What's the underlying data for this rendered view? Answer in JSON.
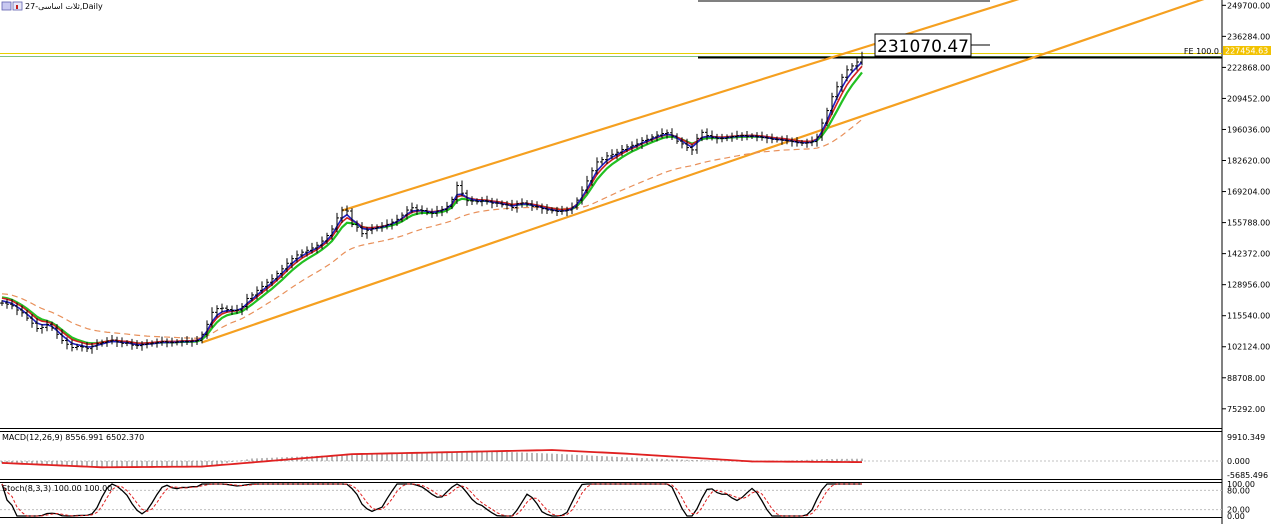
{
  "window": {
    "title": "ثلات اساسی-27,Daily",
    "icon": "chart-window-icon"
  },
  "chart_data": {
    "type": "line",
    "title": "ثلات اساسی-27,Daily",
    "price_axis_ticks": [
      "249700.00",
      "236284.00",
      "222868.00",
      "209452.00",
      "196036.00",
      "182620.00",
      "169204.00",
      "155788.00",
      "142372.00",
      "128956.00",
      "115540.00",
      "102124.00",
      "88708.00",
      "75292.00"
    ],
    "ylim": [
      67000,
      252000
    ],
    "current_price_tag": "227454.63",
    "fibo_label": "FE 100.0",
    "price_callout": "231070.47",
    "price_line_value": 226400,
    "callout_box_value": 231070.47,
    "channel": {
      "upper": [
        {
          "bar": 68,
          "v": 161000
        },
        {
          "bar": 202,
          "v": 251500
        }
      ],
      "lower": [
        {
          "bar": 40,
          "v": 104000
        },
        {
          "bar": 202,
          "v": 224000
        }
      ]
    },
    "close": [
      121000,
      120500,
      119800,
      118000,
      116800,
      114500,
      112300,
      110000,
      110500,
      111800,
      110200,
      107500,
      104800,
      103200,
      101800,
      102200,
      102000,
      101300,
      102400,
      103400,
      104000,
      104600,
      105000,
      104200,
      103600,
      103800,
      102800,
      102600,
      103100,
      103400,
      103700,
      104000,
      104300,
      104100,
      103900,
      104200,
      104500,
      104300,
      104600,
      104800,
      107500,
      111800,
      117000,
      118600,
      118800,
      118200,
      117800,
      118000,
      119500,
      123000,
      124500,
      126500,
      128200,
      130000,
      131500,
      133800,
      135800,
      138200,
      140200,
      141800,
      143000,
      143800,
      144800,
      146000,
      147800,
      150200,
      153000,
      157800,
      161200,
      160800,
      155000,
      153800,
      151000,
      152500,
      153200,
      153800,
      154300,
      155000,
      156000,
      157200,
      159000,
      161200,
      162200,
      161300,
      161000,
      160200,
      159800,
      160800,
      161500,
      162800,
      165800,
      171800,
      168500,
      165200,
      165100,
      164800,
      165200,
      165000,
      164200,
      164200,
      163500,
      163400,
      162300,
      163900,
      164300,
      163800,
      162800,
      162600,
      161800,
      161200,
      160900,
      160600,
      160800,
      161200,
      162500,
      165500,
      169800,
      173800,
      178200,
      182000,
      183000,
      184600,
      185300,
      186200,
      187400,
      188500,
      189200,
      189800,
      191300,
      191800,
      192800,
      193600,
      194300,
      194600,
      193200,
      191000,
      189800,
      188200,
      187200,
      192200,
      194800,
      193400,
      192700,
      192200,
      192200,
      192700,
      193000,
      193300,
      193400,
      193100,
      193200,
      192900,
      192600,
      192300,
      191800,
      191600,
      191400,
      191100,
      190800,
      190300,
      190100,
      190300,
      190800,
      192800,
      198800,
      204200,
      210200,
      214500,
      218600,
      221800,
      223500,
      225200,
      227454.63
    ],
    "ema_short": [
      122000,
      121500,
      120800,
      119400,
      118000,
      116200,
      114400,
      112400,
      111600,
      111700,
      110900,
      109100,
      107100,
      105300,
      103600,
      103000,
      102600,
      102000,
      102100,
      102700,
      103300,
      103900,
      104400,
      104300,
      104000,
      103900,
      103400,
      103000,
      103000,
      103200,
      103400,
      103700,
      104000,
      104000,
      104000,
      104100,
      104300,
      104300,
      104400,
      104600,
      106000,
      108900,
      112900,
      115700,
      117200,
      117700,
      117800,
      117900,
      118700,
      120800,
      122600,
      124500,
      126300,
      128100,
      129800,
      131800,
      133800,
      136000,
      138100,
      139900,
      141400,
      142600,
      143700,
      144800,
      146300,
      148200,
      150600,
      154200,
      157700,
      159200,
      157100,
      155500,
      153300,
      152900,
      153000,
      153400,
      153800,
      154400,
      155200,
      156200,
      157600,
      159400,
      160800,
      161000,
      161000,
      160600,
      160200,
      160500,
      161000,
      161900,
      163800,
      167800,
      168100,
      166600,
      165800,
      165300,
      165200,
      165100,
      164600,
      164400,
      163900,
      163600,
      162900,
      163400,
      163800,
      163800,
      163300,
      162900,
      162300,
      161700,
      161300,
      160900,
      160800,
      161000,
      161700,
      163600,
      166700,
      170200,
      174200,
      178100,
      180500,
      182600,
      184000,
      185100,
      186300,
      187400,
      188300,
      189100,
      190200,
      191000,
      191900,
      192800,
      193500,
      194000,
      193600,
      192300,
      191000,
      189600,
      188400,
      190300,
      192500,
      193000,
      192800,
      192500,
      192300,
      192500,
      192800,
      193000,
      193200,
      193100,
      193200,
      193000,
      192800,
      192500,
      192100,
      191800,
      191600,
      191300,
      191000,
      190600,
      190300,
      190300,
      190500,
      191700,
      195200,
      199700,
      204900,
      209700,
      214200,
      218000,
      220800,
      223000,
      225200
    ],
    "ema_mid": [
      123500,
      123100,
      122400,
      121300,
      120100,
      118600,
      116900,
      115100,
      113900,
      113300,
      112500,
      111100,
      109400,
      107700,
      106100,
      105200,
      104500,
      103800,
      103600,
      103700,
      104000,
      104300,
      104600,
      104500,
      104300,
      104200,
      103900,
      103600,
      103500,
      103600,
      103700,
      103800,
      104000,
      104000,
      104000,
      104100,
      104200,
      104200,
      104300,
      104400,
      105300,
      107300,
      110200,
      112700,
      114600,
      115700,
      116300,
      116700,
      117400,
      118900,
      120400,
      122100,
      123800,
      125500,
      127200,
      129100,
      131000,
      133100,
      135100,
      136900,
      138600,
      140000,
      141300,
      142600,
      144100,
      145800,
      147800,
      150700,
      153700,
      155700,
      155500,
      155000,
      153900,
      153500,
      153400,
      153500,
      153700,
      154100,
      154600,
      155300,
      156300,
      157700,
      158900,
      159600,
      160000,
      160000,
      159900,
      160100,
      160400,
      161000,
      162400,
      165200,
      166100,
      165800,
      165500,
      165300,
      165200,
      165100,
      164800,
      164600,
      164300,
      164000,
      163500,
      163500,
      163700,
      163700,
      163400,
      163100,
      162700,
      162300,
      161900,
      161500,
      161300,
      161300,
      161700,
      163000,
      165200,
      167900,
      171100,
      174400,
      176900,
      179200,
      181000,
      182500,
      184000,
      185300,
      186500,
      187500,
      188700,
      189600,
      190500,
      191400,
      192200,
      192800,
      192900,
      192400,
      191700,
      190800,
      189900,
      190700,
      191900,
      192300,
      192400,
      192300,
      192300,
      192400,
      192600,
      192700,
      192900,
      192900,
      193000,
      192900,
      192800,
      192600,
      192300,
      192100,
      191900,
      191700,
      191400,
      191100,
      190800,
      190700,
      190700,
      191300,
      193400,
      196400,
      200200,
      204100,
      208100,
      211900,
      215100,
      217900,
      220700
    ],
    "ema_long": [
      125000,
      124800,
      124400,
      123700,
      122900,
      121900,
      120800,
      119600,
      118600,
      117800,
      117000,
      116000,
      114900,
      113700,
      112500,
      111600,
      110800,
      110000,
      109400,
      109000,
      108700,
      108400,
      108200,
      108000,
      107800,
      107600,
      107300,
      107100,
      106900,
      106700,
      106600,
      106500,
      106400,
      106300,
      106200,
      106100,
      106000,
      105900,
      105900,
      105800,
      106000,
      106700,
      107900,
      109200,
      110500,
      111600,
      112600,
      113400,
      114300,
      115500,
      116700,
      118000,
      119300,
      120700,
      122000,
      123400,
      124800,
      126300,
      127800,
      129200,
      130600,
      131900,
      133200,
      134400,
      135700,
      137100,
      138500,
      140200,
      142000,
      143600,
      144600,
      145400,
      146000,
      146500,
      146900,
      147400,
      147800,
      148300,
      148800,
      149400,
      150000,
      150800,
      151600,
      152300,
      153000,
      153600,
      154100,
      154700,
      155300,
      155900,
      156600,
      157600,
      158500,
      159200,
      159800,
      160300,
      160700,
      161000,
      161300,
      161500,
      161700,
      161900,
      162000,
      162100,
      162200,
      162300,
      162300,
      162300,
      162300,
      162200,
      162100,
      162000,
      161900,
      161900,
      161900,
      162100,
      162400,
      163000,
      163800,
      164800,
      165800,
      166800,
      167800,
      168800,
      169800,
      170700,
      171600,
      172500,
      173400,
      174300,
      175200,
      176100,
      177000,
      177800,
      178500,
      179100,
      179600,
      180000,
      180400,
      181000,
      181600,
      182100,
      182600,
      183000,
      183400,
      183800,
      184200,
      184600,
      185000,
      185400,
      185700,
      186000,
      186300,
      186500,
      186700,
      186900,
      187100,
      187200,
      187300,
      187400,
      187500,
      187600,
      187700,
      188000,
      188600,
      189500,
      190600,
      192000,
      193500,
      195200,
      196900,
      198600,
      200400
    ],
    "macd": {
      "label": "MACD(12,26,9) 8556.991 6502.370",
      "ticks": [
        "9910.349",
        "0.000",
        "-5685.496"
      ],
      "ylim": [
        -7000,
        11500
      ],
      "signal_anchor": [
        [
          0,
          -800
        ],
        [
          20,
          -2600
        ],
        [
          40,
          -2300
        ],
        [
          70,
          2800
        ],
        [
          110,
          4500
        ],
        [
          125,
          3000
        ],
        [
          150,
          -200
        ],
        [
          175,
          -500
        ],
        [
          195,
          6502.37
        ]
      ],
      "hist_anchor": [
        [
          0,
          -1000
        ],
        [
          20,
          -2300
        ],
        [
          40,
          -2600
        ],
        [
          50,
          1000
        ],
        [
          80,
          3500
        ],
        [
          100,
          3800
        ],
        [
          110,
          3000
        ],
        [
          130,
          1000
        ],
        [
          150,
          -500
        ],
        [
          165,
          800
        ],
        [
          185,
          1200
        ],
        [
          195,
          8556.991
        ]
      ]
    },
    "stoch": {
      "label": "Stoch(8,3,3) 100.00 100.00",
      "ticks": [
        "100.00",
        "80.00",
        "20.00",
        "0.00"
      ]
    }
  }
}
